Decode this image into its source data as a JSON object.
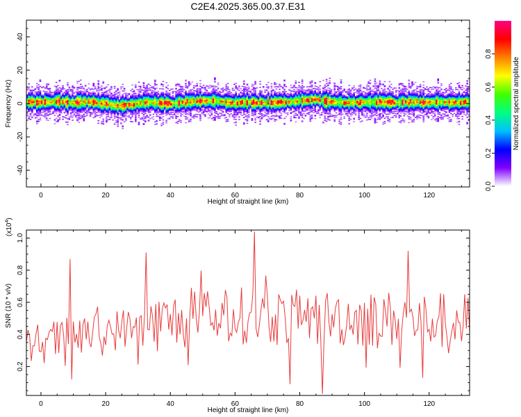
{
  "title": "C2E4.2025.365.00.37.E31",
  "chart_data": [
    {
      "type": "heatmap",
      "title": "C2E4.2025.365.00.37.E31",
      "xlabel": "Height of straight line (km)",
      "ylabel": "Frequency (Hz)",
      "xlim": [
        -4.5,
        132.5
      ],
      "ylim": [
        -50,
        50
      ],
      "xticks": [
        0,
        20,
        40,
        60,
        80,
        100,
        120
      ],
      "yticks": [
        -40,
        -20,
        0,
        20,
        40
      ],
      "colorbar": {
        "label": "Normalized spectral amplitude",
        "range": [
          0,
          1
        ],
        "ticks": [
          "0.0",
          "0.2",
          "0.4",
          "0.6",
          "0.8"
        ],
        "colors": [
          "#ffffff",
          "#8000ff",
          "#0000ff",
          "#00c0ff",
          "#00ff80",
          "#40ff00",
          "#ffff00",
          "#ff8000",
          "#ff0000",
          "#ff0080"
        ]
      },
      "ridge_center_hz": [
        [
          -4,
          0.8
        ],
        [
          0,
          0.6
        ],
        [
          5,
          1.2
        ],
        [
          10,
          0.4
        ],
        [
          15,
          1.0
        ],
        [
          20,
          -0.3
        ],
        [
          24,
          -1.6
        ],
        [
          28,
          -0.6
        ],
        [
          33,
          0.8
        ],
        [
          40,
          -0.2
        ],
        [
          45,
          0.8
        ],
        [
          50,
          1.6
        ],
        [
          55,
          1.2
        ],
        [
          60,
          0.2
        ],
        [
          65,
          0.6
        ],
        [
          70,
          0.3
        ],
        [
          75,
          0.8
        ],
        [
          80,
          1.5
        ],
        [
          85,
          2.2
        ],
        [
          90,
          0.8
        ],
        [
          95,
          0.4
        ],
        [
          100,
          0.6
        ],
        [
          105,
          0.8
        ],
        [
          110,
          0.5
        ],
        [
          115,
          0.9
        ],
        [
          120,
          0.6
        ],
        [
          125,
          0.7
        ],
        [
          132,
          0.6
        ]
      ],
      "ridge_halfwidth_hz": 4.5
    },
    {
      "type": "line",
      "xlabel": "Height of straight line (km)",
      "ylabel": "SNR (10 * v/v)",
      "y_multiplier": "(x10^4)",
      "xlim": [
        -4.5,
        132.5
      ],
      "ylim": [
        0.02,
        1.05
      ],
      "xticks": [
        0,
        20,
        40,
        60,
        80,
        100,
        120
      ],
      "yticks": [
        "0.2",
        "0.4",
        "0.6",
        "0.8",
        "1.0"
      ],
      "color": "#e8393a",
      "x_step": 0.5,
      "trend": [
        [
          -4,
          0.33
        ],
        [
          20,
          0.42
        ],
        [
          40,
          0.48
        ],
        [
          60,
          0.52
        ],
        [
          80,
          0.5
        ],
        [
          100,
          0.5
        ],
        [
          132,
          0.48
        ]
      ],
      "peaks": [
        {
          "x": 9.2,
          "y": 0.87
        },
        {
          "x": 32.3,
          "y": 0.91
        },
        {
          "x": 65.8,
          "y": 1.04
        },
        {
          "x": 113.3,
          "y": 0.92
        },
        {
          "x": 86.8,
          "y": 0.03
        },
        {
          "x": 76.8,
          "y": 0.09
        },
        {
          "x": 117.8,
          "y": 0.13
        },
        {
          "x": 9.4,
          "y": 0.12
        }
      ]
    }
  ]
}
